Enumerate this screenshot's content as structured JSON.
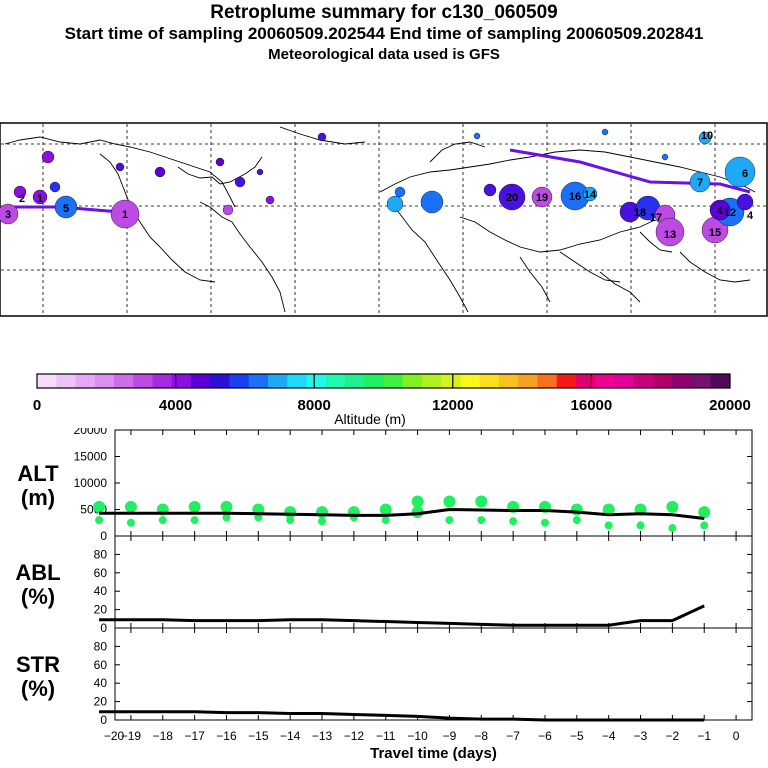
{
  "header": {
    "title": "Retroplume summary for c130_060509",
    "subtitle": "Start time of sampling 20060509.202544     End time of sampling 20060509.202841",
    "met": "Meteorological data used is GFS"
  },
  "map": {
    "labels": [
      "3",
      "2",
      "1",
      "5",
      "1",
      "20",
      "19",
      "18",
      "17",
      "16",
      "15",
      "14",
      "13",
      "12",
      "10",
      "6",
      "4",
      "4",
      "7"
    ]
  },
  "colorbar": {
    "title": "Altitude (m)",
    "ticks": [
      "0",
      "4000",
      "8000",
      "12000",
      "16000",
      "20000"
    ],
    "colors": [
      "#f5ddfa",
      "#eec4f7",
      "#e6a8f5",
      "#dd8ff0",
      "#cf6de8",
      "#bd4ae3",
      "#a82ae0",
      "#8b0fe0",
      "#5a00d4",
      "#2a10d8",
      "#1a40f0",
      "#1a70f8",
      "#20a8f8",
      "#20d8f8",
      "#20f8e8",
      "#20f8b0",
      "#20f090",
      "#20f060",
      "#40f040",
      "#80f020",
      "#b0f020",
      "#d8f020",
      "#f8f820",
      "#f8e020",
      "#f8c020",
      "#f8a020",
      "#f87020",
      "#f81818",
      "#e0006c",
      "#f00090",
      "#e00098",
      "#c8007c",
      "#b00068",
      "#900070",
      "#781070",
      "#500a58"
    ]
  },
  "chart_data": [
    {
      "type": "line",
      "panel": "ALT",
      "ylabel": "ALT\n(m)",
      "ylim": [
        0,
        20000
      ],
      "yticks": [
        "0",
        "5000",
        "10000",
        "15000",
        "20000"
      ],
      "x": [
        -20,
        -19,
        -18,
        -17,
        -16,
        -15,
        -14,
        -13,
        -12,
        -11,
        -10,
        -9,
        -8,
        -7,
        -6,
        -5,
        -4,
        -3,
        -2,
        -1
      ],
      "values": [
        4300,
        4300,
        4300,
        4300,
        4300,
        4200,
        4100,
        4000,
        3900,
        3900,
        4200,
        5000,
        4900,
        4800,
        4800,
        4500,
        4000,
        4200,
        4000,
        3300
      ],
      "scatter": [
        [
          -20,
          5500
        ],
        [
          -20,
          3000
        ],
        [
          -19,
          5500
        ],
        [
          -19,
          2500
        ],
        [
          -18,
          5000
        ],
        [
          -18,
          3000
        ],
        [
          -17,
          5500
        ],
        [
          -17,
          3000
        ],
        [
          -16,
          5500
        ],
        [
          -16,
          3500
        ],
        [
          -15,
          5000
        ],
        [
          -15,
          3500
        ],
        [
          -14,
          4500
        ],
        [
          -14,
          3000
        ],
        [
          -13,
          4500
        ],
        [
          -13,
          2800
        ],
        [
          -12,
          4500
        ],
        [
          -12,
          3500
        ],
        [
          -11,
          5000
        ],
        [
          -11,
          3000
        ],
        [
          -10,
          4500
        ],
        [
          -10,
          6500
        ],
        [
          -9,
          6500
        ],
        [
          -9,
          3000
        ],
        [
          -8,
          6500
        ],
        [
          -8,
          3000
        ],
        [
          -7,
          5500
        ],
        [
          -7,
          2800
        ],
        [
          -6,
          5500
        ],
        [
          -6,
          2500
        ],
        [
          -5,
          5000
        ],
        [
          -5,
          3000
        ],
        [
          -4,
          5000
        ],
        [
          -4,
          2000
        ],
        [
          -3,
          5000
        ],
        [
          -3,
          2000
        ],
        [
          -2,
          5500
        ],
        [
          -2,
          1500
        ],
        [
          -1,
          4500
        ],
        [
          -1,
          2000
        ]
      ]
    },
    {
      "type": "line",
      "panel": "ABL",
      "ylabel": "ABL\n(%)",
      "ylim": [
        0,
        100
      ],
      "yticks": [
        "0",
        "20",
        "40",
        "60",
        "80"
      ],
      "x": [
        -20,
        -19,
        -18,
        -17,
        -16,
        -15,
        -14,
        -13,
        -12,
        -11,
        -10,
        -9,
        -8,
        -7,
        -6,
        -5,
        -4,
        -3,
        -2,
        -1
      ],
      "values": [
        9,
        9,
        9,
        8,
        8,
        8,
        9,
        9,
        8,
        7,
        6,
        5,
        4,
        3,
        3,
        3,
        3,
        8,
        8,
        24
      ]
    },
    {
      "type": "line",
      "panel": "STR",
      "ylabel": "STR\n(%)",
      "ylim": [
        0,
        100
      ],
      "yticks": [
        "0",
        "20",
        "40",
        "60",
        "80"
      ],
      "xlabel": "Travel time (days)",
      "xticks": [
        "−20",
        "−19",
        "−18",
        "−17",
        "−16",
        "−15",
        "−14",
        "−13",
        "−12",
        "−11",
        "−10",
        "−9",
        "−8",
        "−7",
        "−6",
        "−5",
        "−4",
        "−3",
        "−2",
        "−1",
        "0"
      ],
      "x": [
        -20,
        -19,
        -18,
        -17,
        -16,
        -15,
        -14,
        -13,
        -12,
        -11,
        -10,
        -9,
        -8,
        -7,
        -6,
        -5,
        -4,
        -3,
        -2,
        -1
      ],
      "values": [
        9,
        9,
        9,
        9,
        8,
        8,
        7,
        7,
        6,
        5,
        4,
        2,
        1,
        1,
        0,
        0,
        0,
        0,
        0,
        0
      ]
    }
  ]
}
